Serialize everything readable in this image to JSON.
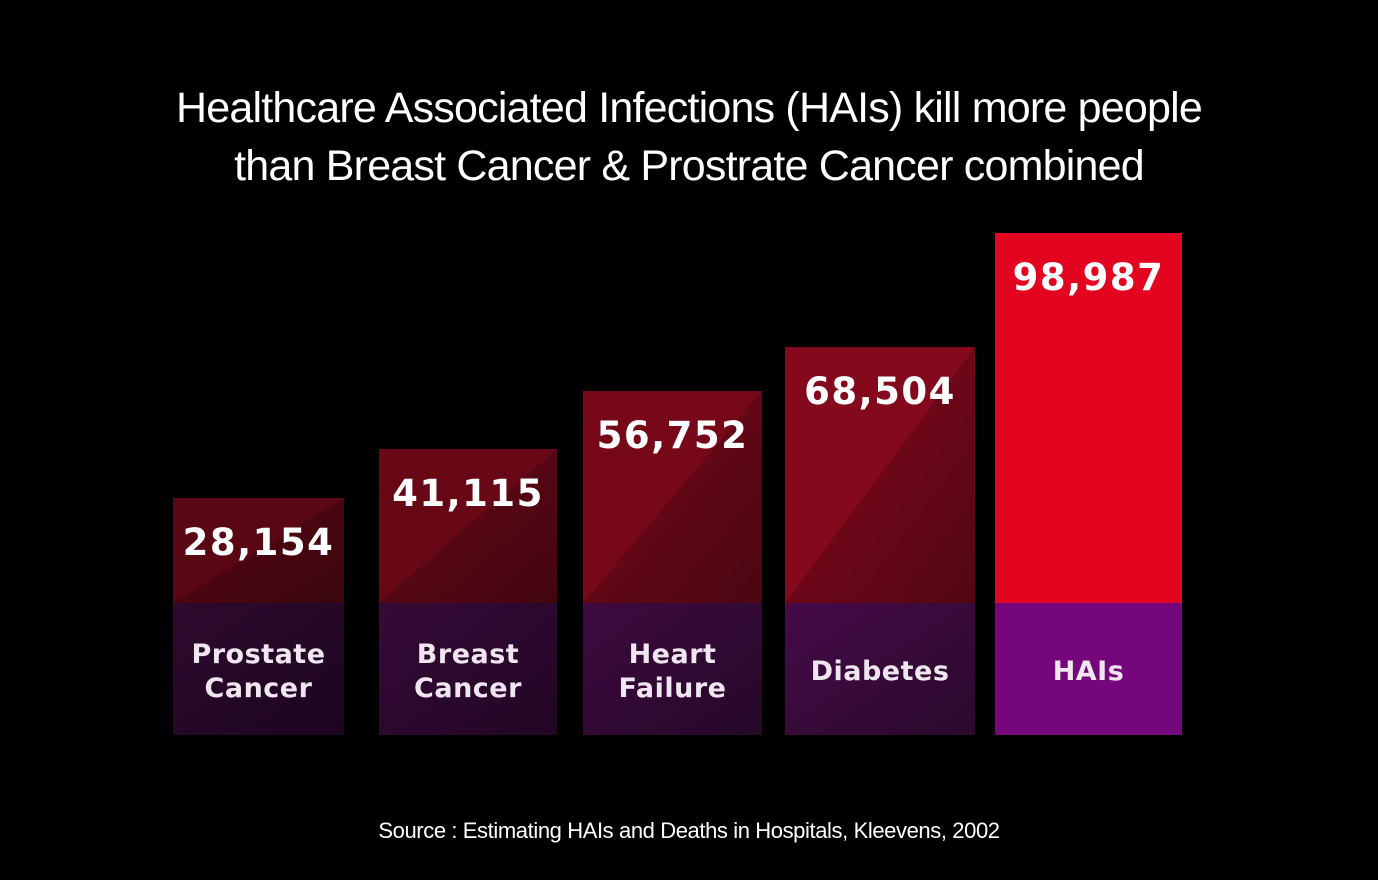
{
  "title_lines": [
    "Healthcare Associated Infections (HAIs) kill more people",
    "than Breast Cancer & Prostrate Cancer combined"
  ],
  "source": "Source : Estimating HAIs and Deaths in Hospitals, Kleevens, 2002",
  "colors": {
    "background": "#000000",
    "bar_dark": "#5a0714",
    "bar_mid": "#9a0a22",
    "bar_bright": "#e3051f",
    "label_dark": "#2e0a2e",
    "label_mid": "#4e0a52",
    "label_bright": "#76067c",
    "text_white": "#ffffff"
  },
  "chart_data": {
    "type": "bar",
    "title": "Healthcare Associated Infections (HAIs) kill more people than Breast Cancer & Prostrate Cancer combined",
    "categories": [
      [
        "Prostate",
        "Cancer"
      ],
      [
        "Breast",
        "Cancer"
      ],
      [
        "Heart",
        "Failure"
      ],
      [
        "Diabetes"
      ],
      [
        "HAIs"
      ]
    ],
    "values": [
      28154,
      41115,
      56752,
      68504,
      98987
    ],
    "value_labels": [
      "28,154",
      "41,115",
      "56,752",
      "68,504",
      "98,987"
    ],
    "xlabel": "",
    "ylabel": "",
    "ylim": [
      0,
      98987
    ],
    "grid": false,
    "legend": "none"
  }
}
